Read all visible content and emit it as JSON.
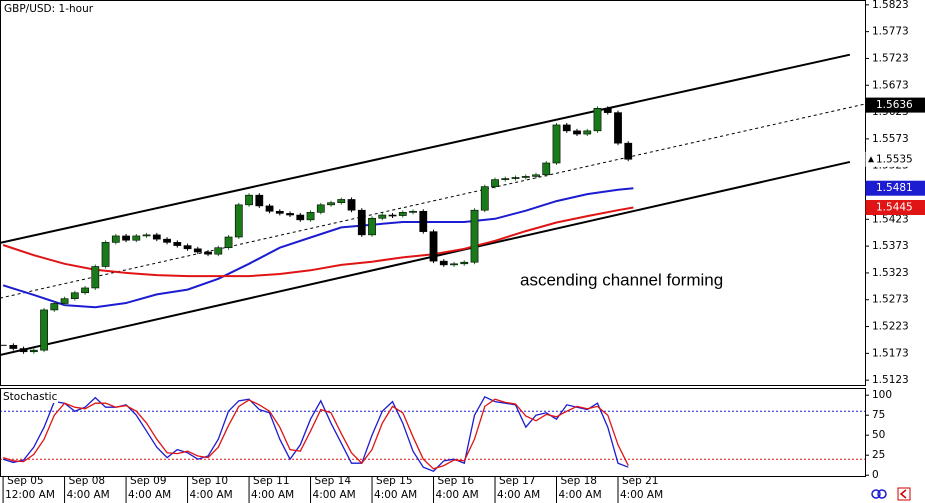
{
  "chart_data": [
    {
      "type": "candlestick",
      "title": "GBP/USD: 1-hour",
      "x": [
        0,
        4,
        8,
        12,
        16,
        20,
        24,
        28,
        32,
        36,
        40,
        44,
        48,
        52,
        56,
        60,
        64,
        68,
        72,
        76,
        80,
        84,
        88,
        92,
        96,
        100,
        104,
        108,
        112,
        116,
        120,
        124,
        128,
        132,
        136,
        140,
        144,
        148,
        152,
        156,
        160,
        164,
        168,
        172,
        176,
        180,
        184,
        188,
        192,
        196,
        200,
        204,
        208,
        212,
        216,
        220,
        224,
        228,
        232,
        236,
        240,
        244
      ],
      "close": [
        1.5188,
        1.5182,
        1.5176,
        1.5179,
        1.5254,
        1.5266,
        1.5275,
        1.5286,
        1.5295,
        1.5335,
        1.538,
        1.5392,
        1.5384,
        1.5392,
        1.5394,
        1.5386,
        1.538,
        1.5374,
        1.5368,
        1.5362,
        1.5358,
        1.537,
        1.539,
        1.545,
        1.5468,
        1.5448,
        1.5438,
        1.5434,
        1.5431,
        1.5422,
        1.5436,
        1.545,
        1.5454,
        1.546,
        1.544,
        1.5394,
        1.5425,
        1.5431,
        1.543,
        1.5436,
        1.5438,
        1.54,
        1.5345,
        1.5338,
        1.534,
        1.5343,
        1.544,
        1.5484,
        1.5497,
        1.5499,
        1.5501,
        1.5503,
        1.5506,
        1.5528,
        1.5599,
        1.5588,
        1.5582,
        1.5588,
        1.563,
        1.5622,
        1.5565,
        1.5535
      ],
      "up_color": "#1a7a1a",
      "down_color": "#000000",
      "series": [
        {
          "color": "#1c1cd0",
          "x": [
            0,
            12,
            24,
            36,
            48,
            60,
            72,
            84,
            96,
            108,
            120,
            132,
            144,
            156,
            168,
            180,
            192,
            204,
            216,
            228,
            240,
            246
          ],
          "values": [
            1.53,
            1.5282,
            1.5263,
            1.5259,
            1.5267,
            1.5283,
            1.5292,
            1.5312,
            1.534,
            1.537,
            1.5389,
            1.5408,
            1.5413,
            1.5418,
            1.5418,
            1.5418,
            1.5424,
            1.5439,
            1.5457,
            1.547,
            1.5478,
            1.5481
          ]
        },
        {
          "color": "#e01414",
          "x": [
            0,
            12,
            24,
            36,
            48,
            60,
            72,
            84,
            96,
            108,
            120,
            132,
            144,
            156,
            168,
            180,
            192,
            204,
            216,
            228,
            240,
            246
          ],
          "values": [
            1.5375,
            1.5356,
            1.534,
            1.5329,
            1.5323,
            1.5319,
            1.5317,
            1.5317,
            1.5317,
            1.5321,
            1.5328,
            1.5338,
            1.5344,
            1.5352,
            1.5358,
            1.5368,
            1.5383,
            1.5401,
            1.5417,
            1.5429,
            1.544,
            1.5445
          ]
        }
      ],
      "trendlines": [
        {
          "x": [
            -1.2,
            330.5
          ],
          "values": [
            1.5379,
            1.573
          ],
          "color": "#000000",
          "dashed": false
        },
        {
          "x": [
            -1.2,
            336.4
          ],
          "values": [
            1.5276,
            1.5638
          ],
          "color": "#000000",
          "dashed": true
        },
        {
          "x": [
            -1.2,
            330.5
          ],
          "values": [
            1.517,
            1.553
          ],
          "color": "#000000",
          "dashed": false
        }
      ],
      "price_labels": [
        {
          "value": 1.5636,
          "color": "#000000",
          "text_color": "#ffffff"
        },
        {
          "value": 1.5535,
          "color": "#ffffff",
          "text_color": "#000000"
        },
        {
          "value": 1.5481,
          "color": "#1c1cd0",
          "text_color": "#ffffff"
        },
        {
          "value": 1.5445,
          "color": "#e01414",
          "text_color": "#ffffff"
        }
      ],
      "annotation": "ascending channel forming",
      "xlim": [
        -1.2,
        336.4
      ],
      "ylim": [
        1.5114,
        1.5832
      ],
      "yticks": [
        1.5823,
        1.5773,
        1.5723,
        1.5673,
        1.5623,
        1.5573,
        1.5523,
        1.5473,
        1.5423,
        1.5373,
        1.5323,
        1.5273,
        1.5223,
        1.5173,
        1.5123
      ]
    },
    {
      "type": "line",
      "title": "Stochastic",
      "x": [
        0,
        4,
        8,
        12,
        16,
        20,
        24,
        28,
        32,
        36,
        40,
        44,
        48,
        52,
        56,
        60,
        64,
        68,
        72,
        76,
        80,
        84,
        88,
        92,
        96,
        100,
        104,
        108,
        112,
        116,
        120,
        124,
        128,
        132,
        136,
        140,
        144,
        148,
        152,
        156,
        160,
        164,
        168,
        172,
        176,
        180,
        184,
        188,
        192,
        196,
        200,
        204,
        208,
        212,
        216,
        220,
        224,
        228,
        232,
        236,
        240,
        244
      ],
      "series": [
        {
          "color": "#1c1cd0",
          "values": [
            20,
            16,
            19,
            35,
            60,
            92,
            90,
            80,
            85,
            97,
            85,
            85,
            88,
            75,
            55,
            35,
            22,
            32,
            28,
            20,
            24,
            45,
            80,
            93,
            95,
            82,
            78,
            45,
            20,
            38,
            70,
            93,
            65,
            40,
            15,
            15,
            50,
            80,
            92,
            65,
            30,
            10,
            5,
            18,
            20,
            15,
            75,
            98,
            92,
            90,
            88,
            60,
            75,
            78,
            70,
            88,
            85,
            82,
            90,
            60,
            15,
            10
          ]
        },
        {
          "color": "#e01414",
          "values": [
            22,
            18,
            17,
            26,
            45,
            75,
            90,
            85,
            83,
            90,
            90,
            85,
            87,
            80,
            65,
            45,
            28,
            27,
            30,
            24,
            22,
            35,
            62,
            86,
            94,
            88,
            80,
            60,
            32,
            30,
            55,
            82,
            78,
            52,
            28,
            15,
            32,
            65,
            86,
            78,
            48,
            20,
            8,
            12,
            19,
            18,
            45,
            86,
            95,
            91,
            89,
            74,
            68,
            76,
            73,
            80,
            86,
            83,
            86,
            75,
            38,
            12
          ]
        }
      ],
      "levels": [
        {
          "value": 80,
          "color": "#1c1cd0"
        },
        {
          "value": 20,
          "color": "#e01414"
        }
      ],
      "xlim": [
        -1.2,
        336.4
      ],
      "ylim": [
        -1,
        109
      ],
      "yticks": [
        0,
        25,
        50,
        75,
        100
      ],
      "xticks": [
        {
          "value": 0,
          "label": "Sep 05"
        },
        {
          "value": 24,
          "label": "Sep 08"
        },
        {
          "value": 48,
          "label": "Sep 09"
        },
        {
          "value": 72,
          "label": "Sep 10"
        },
        {
          "value": 96,
          "label": "Sep 11"
        },
        {
          "value": 120,
          "label": "Sep 14"
        },
        {
          "value": 144,
          "label": "Sep 15"
        },
        {
          "value": 168,
          "label": "Sep 16"
        },
        {
          "value": 192,
          "label": "Sep 17"
        },
        {
          "value": 216,
          "label": "Sep 18"
        },
        {
          "value": 240,
          "label": "Sep 21"
        }
      ],
      "xtick_times": [
        "12:00 AM",
        "4:00 AM",
        "4:00 AM",
        "4:00 AM",
        "4:00 AM",
        "4:00 AM",
        "4:00 AM",
        "4:00 AM",
        "4:00 AM",
        "4:00 AM",
        "4:00 AM"
      ]
    }
  ]
}
